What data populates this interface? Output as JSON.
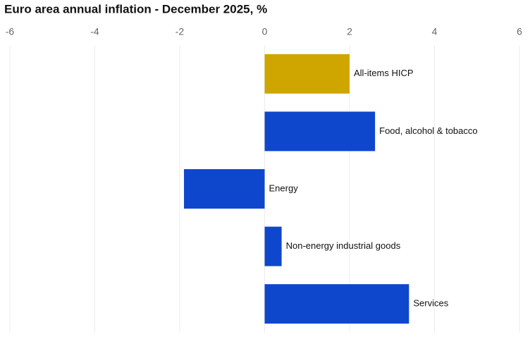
{
  "chart_data": {
    "type": "bar",
    "orientation": "horizontal",
    "title": "Euro area annual inflation - December 2025, %",
    "categories": [
      "All-items HICP",
      "Food, alcohol & tobacco",
      "Energy",
      "Non-energy industrial goods",
      "Services"
    ],
    "values": [
      2.0,
      2.6,
      -1.9,
      0.4,
      3.4
    ],
    "colors": [
      "#cfa600",
      "#0f47cc",
      "#0f47cc",
      "#0f47cc",
      "#0f47cc"
    ],
    "xlim": [
      -6,
      6
    ],
    "xticks": [
      -6,
      -4,
      -2,
      0,
      2,
      4,
      6
    ],
    "grid": true
  }
}
